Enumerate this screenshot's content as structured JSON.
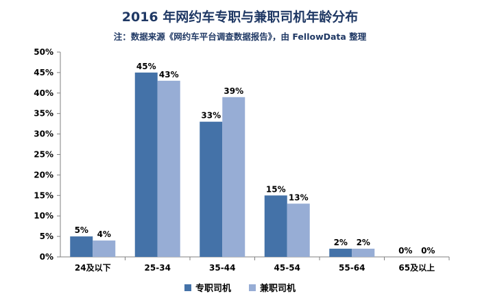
{
  "title": "2016 年网约车专职与兼职司机年龄分布",
  "subtitle": "注：数据来源《网约车平台调查数据报告》，由 FellowData 整理",
  "colors": {
    "series1": "#4472a8",
    "series2": "#97add5",
    "axis": "#7f7f7f"
  },
  "chart_data": {
    "type": "bar",
    "categories": [
      "24及以下",
      "25-34",
      "35-44",
      "45-54",
      "55-64",
      "65及以上"
    ],
    "series": [
      {
        "name": "专职司机",
        "values": [
          5,
          45,
          33,
          15,
          2,
          0
        ]
      },
      {
        "name": "兼职司机",
        "values": [
          4,
          43,
          39,
          13,
          2,
          0
        ]
      }
    ],
    "y_ticks": [
      "0%",
      "5%",
      "10%",
      "15%",
      "20%",
      "25%",
      "30%",
      "35%",
      "40%",
      "45%",
      "50%"
    ],
    "ylim": [
      0,
      50
    ],
    "unit": "%",
    "grid": false,
    "legend": "bottom"
  }
}
